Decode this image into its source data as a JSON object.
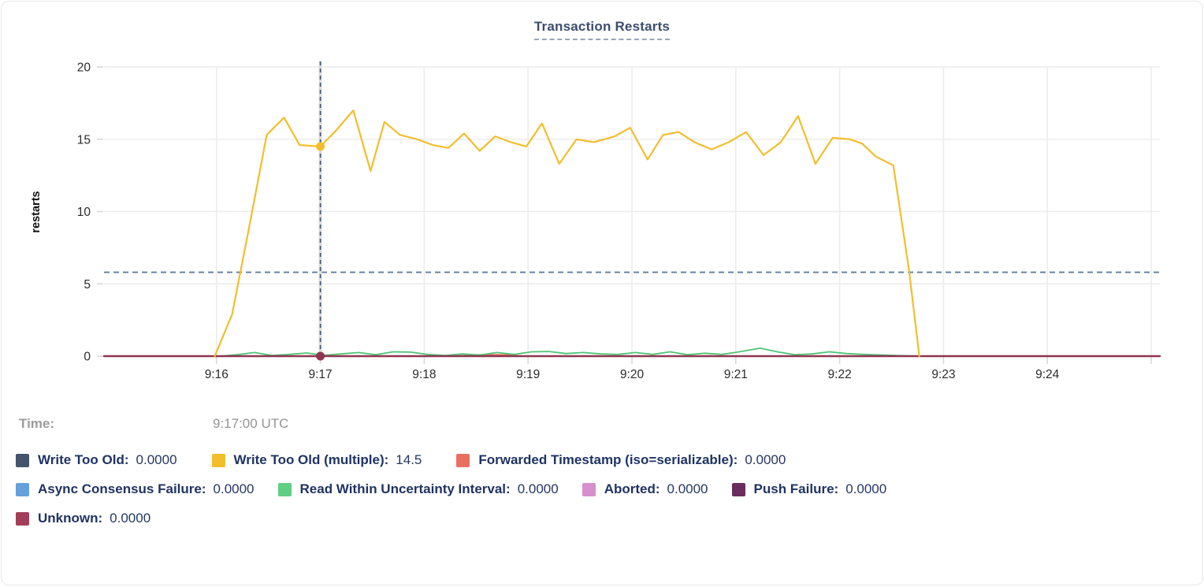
{
  "title": "Transaction Restarts",
  "tooltip": {
    "time_label": "Time:",
    "time_value": "9:17:00 UTC"
  },
  "legend": {
    "rows": [
      [
        {
          "label": "Write Too Old",
          "value": "0.0000",
          "color": "#44546c"
        },
        {
          "label": "Write Too Old (multiple)",
          "value": "14.5",
          "color": "#f2be2c"
        },
        {
          "label": "Forwarded Timestamp (iso=serializable)",
          "value": "0.0000",
          "color": "#e9705f"
        }
      ],
      [
        {
          "label": "Async Consensus Failure",
          "value": "0.0000",
          "color": "#64a1d8"
        },
        {
          "label": "Read Within Uncertainty Interval",
          "value": "0.0000",
          "color": "#60ce83"
        },
        {
          "label": "Aborted",
          "value": "0.0000",
          "color": "#d78fcd"
        },
        {
          "label": "Push Failure",
          "value": "0.0000",
          "color": "#6b2c5e"
        }
      ],
      [
        {
          "label": "Unknown",
          "value": "0.0000",
          "color": "#a23e59"
        }
      ]
    ]
  },
  "chart_data": {
    "type": "line",
    "title": "Transaction Restarts",
    "xlabel": "",
    "ylabel": "restarts",
    "ylim": [
      0,
      20
    ],
    "y_ticks": [
      0,
      5,
      10,
      15,
      20
    ],
    "x_domain_seconds_after_9am": [
      895,
      1505
    ],
    "x_ticks": [
      {
        "t": 960,
        "label": "9:16"
      },
      {
        "t": 1020,
        "label": "9:17"
      },
      {
        "t": 1080,
        "label": "9:18"
      },
      {
        "t": 1140,
        "label": "9:19"
      },
      {
        "t": 1200,
        "label": "9:20"
      },
      {
        "t": 1260,
        "label": "9:21"
      },
      {
        "t": 1320,
        "label": "9:22"
      },
      {
        "t": 1380,
        "label": "9:23"
      },
      {
        "t": 1440,
        "label": "9:24"
      },
      {
        "t": 1500,
        "label": ""
      }
    ],
    "grid": true,
    "threshold_dashed_line": {
      "value": 5.8,
      "color": "#5f7d9c"
    },
    "crosshair": {
      "t": 1020,
      "time": "9:17:00 UTC",
      "dots": [
        {
          "series": "Write Too Old (multiple)",
          "value": 14.5,
          "color": "#f2be2c"
        },
        {
          "series": "Unknown",
          "value": 0,
          "color": "#8f3550"
        }
      ]
    },
    "series": [
      {
        "name": "Write Too Old",
        "color": "#44546c",
        "width": 1.6,
        "points": [
          [
            895,
            0
          ],
          [
            1505,
            0
          ]
        ]
      },
      {
        "name": "Forwarded Timestamp (iso=serializable)",
        "color": "#e9705f",
        "width": 2,
        "points": [
          [
            895,
            0
          ],
          [
            1098,
            0
          ],
          [
            1108,
            0.07
          ],
          [
            1118,
            0.1
          ],
          [
            1128,
            0.08
          ],
          [
            1136,
            0
          ],
          [
            1505,
            0
          ]
        ]
      },
      {
        "name": "Async Consensus Failure",
        "color": "#64a1d8",
        "width": 1.6,
        "points": [
          [
            895,
            0
          ],
          [
            1505,
            0
          ]
        ]
      },
      {
        "name": "Aborted",
        "color": "#d78fcd",
        "width": 1.6,
        "points": [
          [
            895,
            0
          ],
          [
            1505,
            0
          ]
        ]
      },
      {
        "name": "Push Failure",
        "color": "#6b2c5e",
        "width": 1.6,
        "points": [
          [
            895,
            0
          ],
          [
            1505,
            0
          ]
        ]
      },
      {
        "name": "Read Within Uncertainty Interval",
        "color": "#4fc476",
        "width": 1.8,
        "points": [
          [
            962,
            0
          ],
          [
            972,
            0.1
          ],
          [
            982,
            0.25
          ],
          [
            992,
            0.05
          ],
          [
            1002,
            0.12
          ],
          [
            1012,
            0.22
          ],
          [
            1022,
            0.06
          ],
          [
            1032,
            0.15
          ],
          [
            1042,
            0.25
          ],
          [
            1052,
            0.1
          ],
          [
            1062,
            0.3
          ],
          [
            1072,
            0.28
          ],
          [
            1082,
            0.12
          ],
          [
            1092,
            0.05
          ],
          [
            1102,
            0.15
          ],
          [
            1112,
            0.08
          ],
          [
            1122,
            0.25
          ],
          [
            1132,
            0.12
          ],
          [
            1142,
            0.3
          ],
          [
            1152,
            0.32
          ],
          [
            1162,
            0.18
          ],
          [
            1172,
            0.25
          ],
          [
            1182,
            0.15
          ],
          [
            1192,
            0.12
          ],
          [
            1202,
            0.25
          ],
          [
            1212,
            0.12
          ],
          [
            1222,
            0.3
          ],
          [
            1232,
            0.1
          ],
          [
            1242,
            0.2
          ],
          [
            1252,
            0.12
          ],
          [
            1262,
            0.3
          ],
          [
            1274,
            0.55
          ],
          [
            1284,
            0.3
          ],
          [
            1294,
            0.1
          ],
          [
            1304,
            0.15
          ],
          [
            1314,
            0.3
          ],
          [
            1324,
            0.18
          ],
          [
            1334,
            0.12
          ],
          [
            1344,
            0.08
          ],
          [
            1356,
            0.03
          ],
          [
            1366,
            0
          ]
        ]
      },
      {
        "name": "Unknown",
        "color": "#8f3550",
        "width": 2.4,
        "points": [
          [
            895,
            0
          ],
          [
            1505,
            0
          ]
        ]
      },
      {
        "name": "Write Too Old (multiple)",
        "color": "#f2be2c",
        "width": 2.2,
        "points": [
          [
            959,
            0
          ],
          [
            969,
            2.9
          ],
          [
            979,
            9.0
          ],
          [
            989,
            15.3
          ],
          [
            999,
            16.5
          ],
          [
            1008,
            14.6
          ],
          [
            1020,
            14.5
          ],
          [
            1029,
            15.6
          ],
          [
            1039,
            17.0
          ],
          [
            1049,
            12.8
          ],
          [
            1057,
            16.2
          ],
          [
            1066,
            15.3
          ],
          [
            1076,
            15.0
          ],
          [
            1085,
            14.6
          ],
          [
            1094,
            14.4
          ],
          [
            1103,
            15.4
          ],
          [
            1112,
            14.2
          ],
          [
            1121,
            15.2
          ],
          [
            1130,
            14.8
          ],
          [
            1139,
            14.5
          ],
          [
            1148,
            16.1
          ],
          [
            1158,
            13.3
          ],
          [
            1168,
            15.0
          ],
          [
            1178,
            14.8
          ],
          [
            1190,
            15.2
          ],
          [
            1199,
            15.8
          ],
          [
            1209,
            13.6
          ],
          [
            1218,
            15.3
          ],
          [
            1227,
            15.5
          ],
          [
            1236,
            14.8
          ],
          [
            1246,
            14.3
          ],
          [
            1256,
            14.8
          ],
          [
            1266,
            15.5
          ],
          [
            1276,
            13.9
          ],
          [
            1286,
            14.8
          ],
          [
            1296,
            16.6
          ],
          [
            1306,
            13.3
          ],
          [
            1316,
            15.1
          ],
          [
            1326,
            15.0
          ],
          [
            1333,
            14.7
          ],
          [
            1341,
            13.8
          ],
          [
            1351,
            13.2
          ],
          [
            1360,
            6.0
          ],
          [
            1366,
            0
          ]
        ]
      }
    ]
  },
  "colors": {
    "grid": "#ececec",
    "tick": "#d7d7d7",
    "axis_text": "#2b2b2b",
    "title_navy": "#3c4d6f",
    "legend_navy": "#1f3364",
    "crosshair_band": "#dcdcdc",
    "crosshair_dash": "#3e5070"
  }
}
